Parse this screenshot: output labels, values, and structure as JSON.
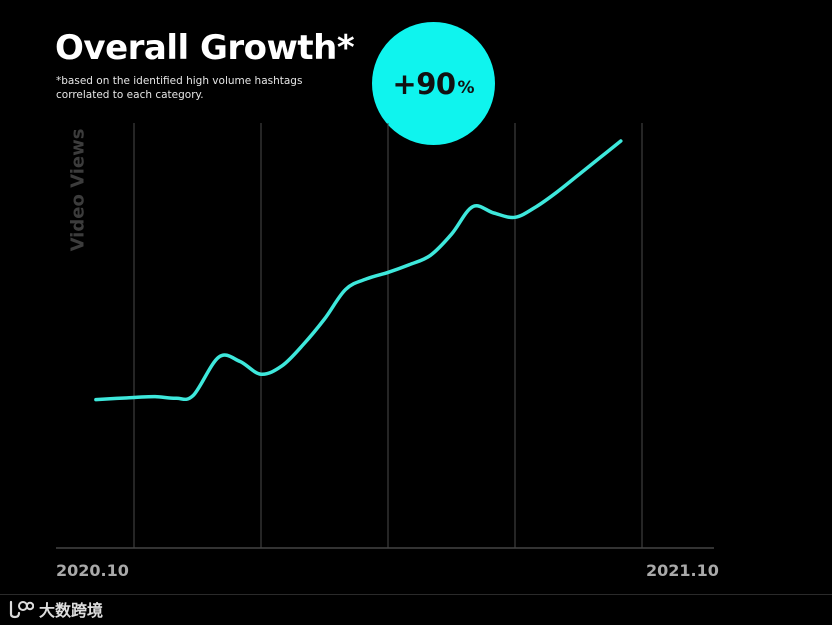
{
  "header": {
    "title": "Overall Growth*",
    "subtitle_line1": "*based on the identified high volume hashtags",
    "subtitle_line2": "correlated to each category."
  },
  "badge": {
    "value": "+90",
    "unit": "%"
  },
  "footer": {
    "logo_text": "大数跨境"
  },
  "colors": {
    "background": "#000000",
    "line": "#3ee8dc",
    "badge": "#0ff4ee",
    "gridline": "#4a4a4a"
  },
  "chart_data": {
    "type": "line",
    "title": "Overall Growth*",
    "ylabel": "Video Views",
    "xlabel": "",
    "x_tick_labels": [
      "2020.10",
      "2021.10"
    ],
    "grid": "vertical",
    "x_range": [
      0,
      12
    ],
    "ylim": [
      0,
      100
    ],
    "series": [
      {
        "name": "Video Views",
        "x": [
          -0.9,
          0,
          0.5,
          1,
          1.4,
          2,
          2.5,
          3,
          3.5,
          4,
          4.5,
          5,
          5.5,
          6,
          6.5,
          7,
          7.5,
          8,
          8.5,
          9,
          9.5,
          10,
          10.5,
          11,
          11.5
        ],
        "y": [
          35,
          35.5,
          35.7,
          35.3,
          36,
          45,
          44,
          41,
          43,
          48,
          54,
          61,
          63.5,
          65,
          66.8,
          69,
          74,
          80.5,
          79,
          78,
          80.5,
          84,
          88,
          92,
          96
        ]
      }
    ]
  }
}
